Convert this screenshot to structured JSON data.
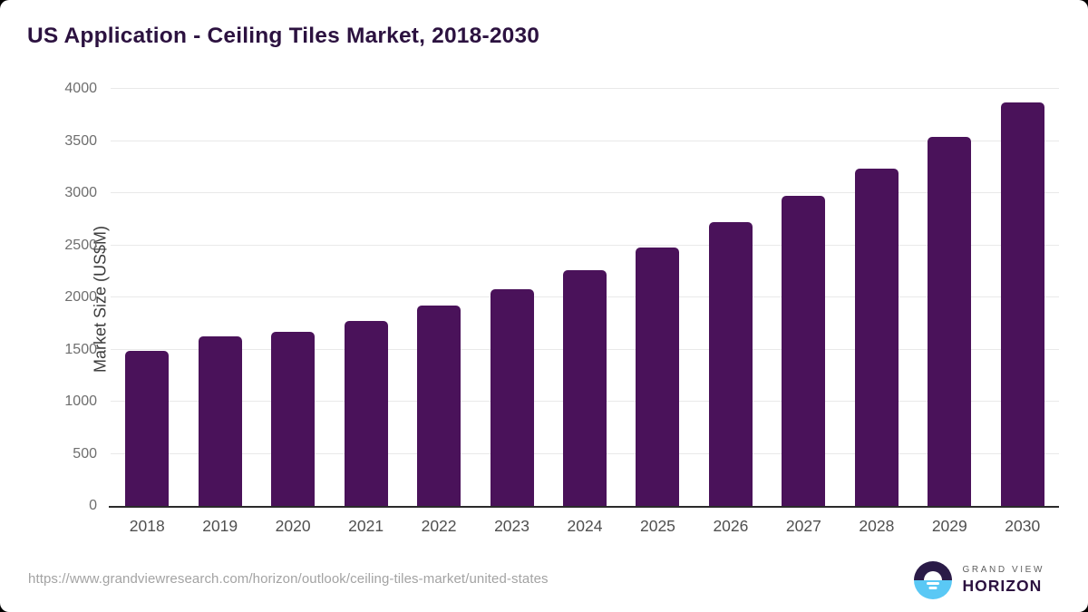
{
  "page": {
    "source_url": "https://www.grandviewresearch.com/horizon/outlook/ceiling-tiles-market/united-states"
  },
  "logo": {
    "top_text": "GRAND VIEW",
    "bottom_text": "HORIZON"
  },
  "colors": {
    "bar": "#4a125a",
    "title": "#2c1240",
    "gridline": "#e9e9e9",
    "axis_line": "#2b2b2b",
    "y_tick_label": "#6e6e6e",
    "x_tick_label": "#4f4f4f",
    "url_text": "#a3a3a3",
    "logo_dark_purple": "#2a1b47",
    "logo_light_blue": "#5ac8f5"
  },
  "chart_data": {
    "type": "bar",
    "title": "US Application - Ceiling Tiles Market, 2018-2030",
    "categories": [
      "2018",
      "2019",
      "2020",
      "2021",
      "2022",
      "2023",
      "2024",
      "2025",
      "2026",
      "2027",
      "2028",
      "2029",
      "2030"
    ],
    "values": [
      1490,
      1630,
      1670,
      1775,
      1920,
      2080,
      2265,
      2480,
      2725,
      2975,
      3235,
      3540,
      3870
    ],
    "xlabel": "",
    "ylabel": "Market Size (US$M)",
    "ylim": [
      0,
      4000
    ],
    "yticks": [
      0,
      500,
      1000,
      1500,
      2000,
      2500,
      3000,
      3500,
      4000
    ],
    "grid": "horizontal-light-gray",
    "legend": "none",
    "bar_color": "#4a125a",
    "bar_corner_radius_px": 5
  }
}
